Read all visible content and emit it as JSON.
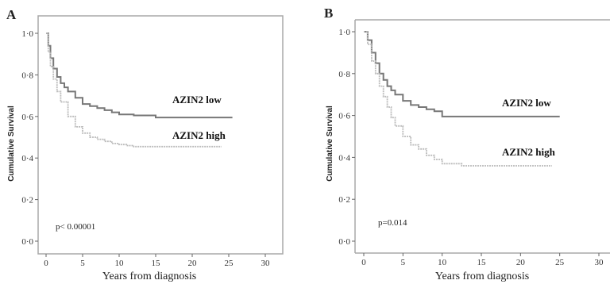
{
  "chart_data": [
    {
      "panel": "A",
      "type": "line",
      "xlabel": "Years from diagnosis",
      "ylabel": "Cumulative Survival",
      "xlim": [
        0,
        30
      ],
      "ylim": [
        0,
        1
      ],
      "xticks": [
        "0",
        "5",
        "10",
        "15",
        "20",
        "25",
        "30"
      ],
      "yticks": [
        "0·0",
        "0·2",
        "0·4",
        "0·6",
        "0·8",
        "1·0"
      ],
      "annotation": "p< 0.00001",
      "series": [
        {
          "name": "AZIN2 low",
          "color": "#777777",
          "x": [
            0,
            0.3,
            0.6,
            1.0,
            1.5,
            2.0,
            2.5,
            3.0,
            4.0,
            5.0,
            6.0,
            7.0,
            8.0,
            9.0,
            10.0,
            12.0,
            15.0,
            20.0,
            25.5
          ],
          "y": [
            1.0,
            0.94,
            0.88,
            0.83,
            0.79,
            0.76,
            0.74,
            0.72,
            0.69,
            0.66,
            0.65,
            0.64,
            0.63,
            0.62,
            0.61,
            0.605,
            0.595,
            0.595,
            0.595
          ]
        },
        {
          "name": "AZIN2 high",
          "color": "#bbbbbb",
          "x": [
            0,
            0.3,
            0.6,
            1.0,
            1.5,
            2.0,
            3.0,
            4.0,
            5.0,
            6.0,
            7.0,
            8.0,
            9.0,
            10.0,
            11.0,
            12.0,
            15.0,
            20.0,
            24.0
          ],
          "y": [
            1.0,
            0.91,
            0.84,
            0.78,
            0.72,
            0.67,
            0.6,
            0.55,
            0.52,
            0.5,
            0.49,
            0.48,
            0.47,
            0.465,
            0.46,
            0.455,
            0.455,
            0.455,
            0.455
          ]
        }
      ]
    },
    {
      "panel": "B",
      "type": "line",
      "xlabel": "Years from diagnosis",
      "ylabel": "Cumulative Survival",
      "xlim": [
        0,
        30
      ],
      "ylim": [
        0,
        1
      ],
      "xticks": [
        "0",
        "5",
        "10",
        "15",
        "20",
        "25",
        "30"
      ],
      "yticks": [
        "0·0",
        "0·2",
        "0·4",
        "0·6",
        "0·8",
        "1·0"
      ],
      "annotation": "p=0.014",
      "series": [
        {
          "name": "AZIN2 low",
          "color": "#777777",
          "x": [
            0,
            0.5,
            1.0,
            1.5,
            2.0,
            2.5,
            3.0,
            3.5,
            4.0,
            5.0,
            6.0,
            7.0,
            8.0,
            9.0,
            10.0,
            12.0,
            15.0,
            20.0,
            25.0
          ],
          "y": [
            1.0,
            0.96,
            0.9,
            0.85,
            0.8,
            0.77,
            0.74,
            0.72,
            0.7,
            0.67,
            0.65,
            0.64,
            0.63,
            0.62,
            0.595,
            0.595,
            0.595,
            0.595,
            0.595
          ]
        },
        {
          "name": "AZIN2 high",
          "color": "#bbbbbb",
          "x": [
            0,
            0.5,
            1.0,
            1.5,
            2.0,
            2.5,
            3.0,
            3.5,
            4.0,
            5.0,
            6.0,
            7.0,
            8.0,
            9.0,
            10.0,
            11.0,
            12.0,
            12.5,
            15.0,
            20.0,
            24.0
          ],
          "y": [
            1.0,
            0.94,
            0.86,
            0.8,
            0.74,
            0.69,
            0.64,
            0.59,
            0.55,
            0.5,
            0.46,
            0.44,
            0.41,
            0.39,
            0.37,
            0.37,
            0.37,
            0.36,
            0.36,
            0.36,
            0.36
          ]
        }
      ]
    }
  ]
}
